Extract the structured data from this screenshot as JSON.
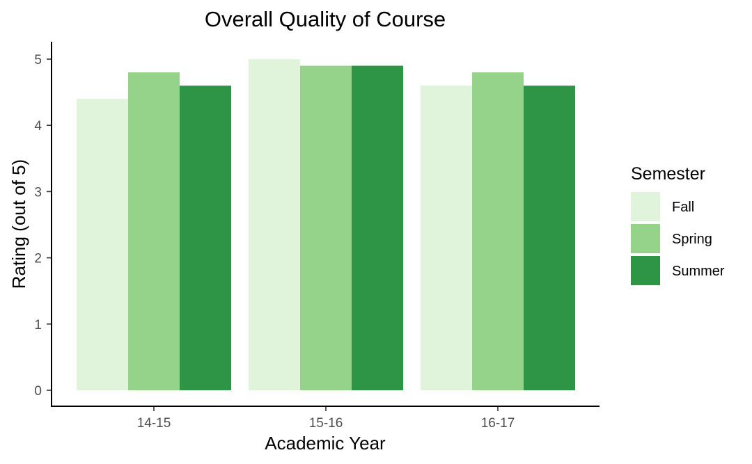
{
  "chart_data": {
    "type": "bar",
    "title": "Overall Quality of Course",
    "xlabel": "Academic Year",
    "ylabel": "Rating (out of 5)",
    "categories": [
      "14-15",
      "15-16",
      "16-17"
    ],
    "series": [
      {
        "name": "Fall",
        "values": [
          4.4,
          5.0,
          4.6
        ],
        "color": "#e0f3db"
      },
      {
        "name": "Spring",
        "values": [
          4.8,
          4.9,
          4.8
        ],
        "color": "#95d38a"
      },
      {
        "name": "Summer",
        "values": [
          4.6,
          4.9,
          4.6
        ],
        "color": "#2e9547"
      }
    ],
    "ylim": [
      0,
      5
    ],
    "yticks": [
      0,
      1,
      2,
      3,
      4,
      5
    ],
    "legend": {
      "title": "Semester",
      "position": "right"
    },
    "grid": false
  }
}
